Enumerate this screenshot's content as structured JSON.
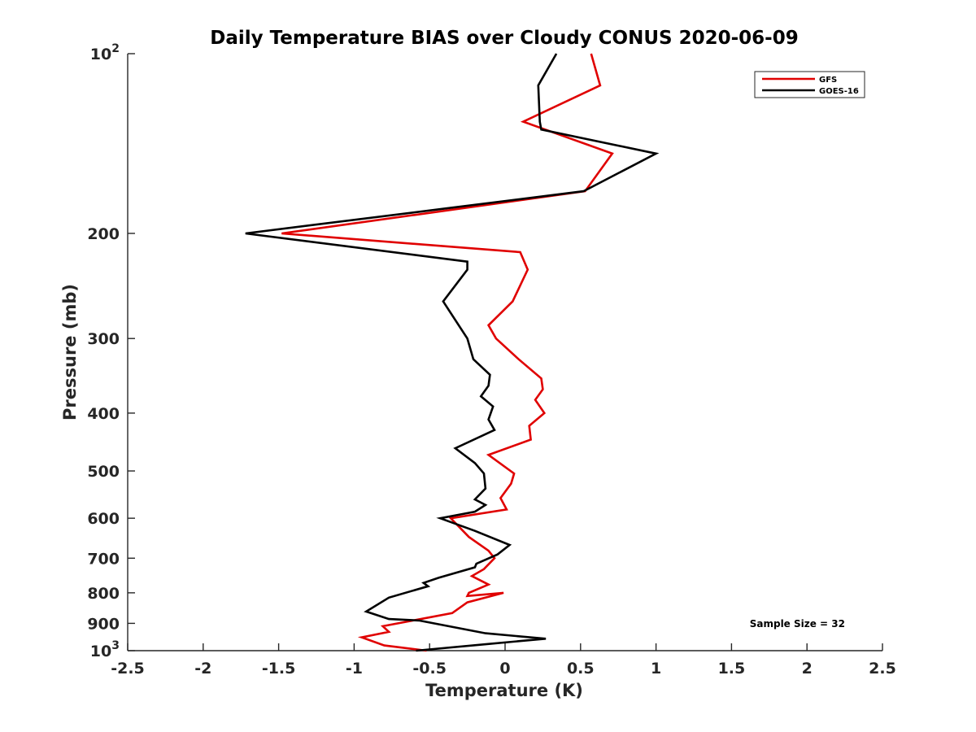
{
  "chart_data": {
    "type": "line",
    "title": "Daily Temperature BIAS over Cloudy CONUS 2020-06-09",
    "xlabel": "Temperature (K)",
    "ylabel": "Pressure (mb)",
    "xlim": [
      -2.5,
      2.5
    ],
    "ylim": [
      100,
      1000
    ],
    "y_scale": "log",
    "y_reversed": true,
    "grid": false,
    "legend_position": "top-right",
    "x_ticks": [
      -2.5,
      -2,
      -1.5,
      -1,
      -0.5,
      0,
      0.5,
      1,
      1.5,
      2,
      2.5
    ],
    "x_tick_labels": [
      "-2.5",
      "-2",
      "-1.5",
      "-1",
      "-0.5",
      "0",
      "0.5",
      "1",
      "1.5",
      "2",
      "2.5"
    ],
    "y_ticks": [
      100,
      200,
      300,
      400,
      500,
      600,
      700,
      800,
      900,
      1000
    ],
    "y_tick_labels": [
      {
        "base": "10",
        "exp": "2"
      },
      {
        "base": "200",
        "exp": ""
      },
      {
        "base": "300",
        "exp": ""
      },
      {
        "base": "400",
        "exp": ""
      },
      {
        "base": "500",
        "exp": ""
      },
      {
        "base": "600",
        "exp": ""
      },
      {
        "base": "700",
        "exp": ""
      },
      {
        "base": "800",
        "exp": ""
      },
      {
        "base": "900",
        "exp": ""
      },
      {
        "base": "10",
        "exp": "3"
      }
    ],
    "annotation": "Sample Size = 32",
    "series": [
      {
        "name": "GFS",
        "color": "#e00000",
        "x": [
          0.57,
          0.63,
          0.12,
          0.71,
          0.53,
          -1.48,
          0.1,
          0.15,
          0.05,
          -0.11,
          -0.06,
          0.09,
          0.24,
          0.25,
          0.2,
          0.26,
          0.16,
          0.17,
          -0.11,
          0.06,
          0.04,
          -0.03,
          0.01,
          -0.36,
          -0.24,
          -0.11,
          -0.07,
          -0.14,
          -0.22,
          -0.11,
          -0.24,
          -0.25,
          -0.01,
          -0.25,
          -0.35,
          -0.81,
          -0.77,
          -0.95,
          -0.8,
          -0.52
        ],
        "y": [
          100,
          113,
          130,
          147,
          170,
          200,
          215,
          230,
          260,
          285,
          300,
          325,
          350,
          365,
          380,
          400,
          420,
          443,
          470,
          505,
          525,
          555,
          580,
          600,
          645,
          680,
          700,
          730,
          750,
          775,
          800,
          810,
          800,
          830,
          865,
          910,
          930,
          950,
          980,
          1000
        ]
      },
      {
        "name": "GOES-16",
        "color": "#000000",
        "x": [
          0.34,
          0.22,
          0.23,
          0.24,
          1.0,
          0.52,
          -1.72,
          -0.25,
          -0.25,
          -0.41,
          -0.25,
          -0.21,
          -0.1,
          -0.11,
          -0.16,
          -0.08,
          -0.11,
          -0.07,
          -0.33,
          -0.2,
          -0.14,
          -0.13,
          -0.2,
          -0.13,
          -0.2,
          -0.43,
          -0.2,
          0.03,
          -0.05,
          -0.19,
          -0.2,
          -0.44,
          -0.54,
          -0.51,
          -0.77,
          -0.92,
          -0.77,
          -0.57,
          -0.13,
          0.27,
          -0.12,
          -0.59
        ],
        "y": [
          100,
          113,
          130,
          134,
          147,
          170,
          200,
          223,
          230,
          260,
          300,
          325,
          345,
          360,
          375,
          390,
          410,
          427,
          458,
          485,
          505,
          535,
          558,
          570,
          585,
          600,
          630,
          665,
          690,
          715,
          725,
          755,
          770,
          780,
          815,
          860,
          885,
          890,
          935,
          955,
          975,
          1000
        ]
      }
    ]
  }
}
